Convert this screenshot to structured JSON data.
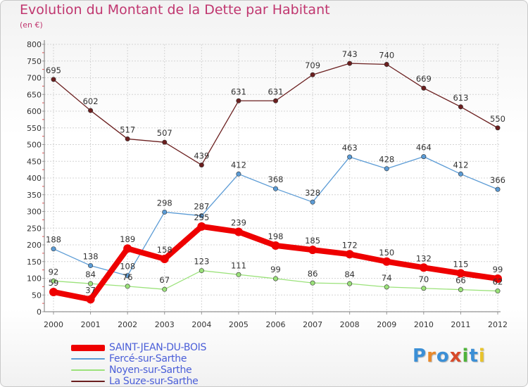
{
  "title": "Evolution du Montant de la Dette par Habitant",
  "subtitle": "(en €)",
  "logo": {
    "letters": [
      {
        "ch": "P",
        "color": "#3b8fd6"
      },
      {
        "ch": "r",
        "color": "#e8892b"
      },
      {
        "ch": "o",
        "color": "#3b8fd6"
      },
      {
        "ch": "x",
        "color": "#d84a2a"
      },
      {
        "ch": "i",
        "color": "#4fb33b"
      },
      {
        "ch": "t",
        "color": "#3b8fd6"
      },
      {
        "ch": "i",
        "color": "#e8c32b"
      }
    ]
  },
  "chart_data": {
    "type": "line",
    "x": [
      "2000",
      "2001",
      "2002",
      "2003",
      "2004",
      "2005",
      "2006",
      "2007",
      "2008",
      "2009",
      "2010",
      "2011",
      "2012"
    ],
    "yticks": [
      "0",
      "50",
      "100",
      "150",
      "200",
      "250",
      "300",
      "350",
      "400",
      "450",
      "500",
      "550",
      "600",
      "650",
      "700",
      "750",
      "800"
    ],
    "ylim": [
      0,
      800
    ],
    "grid": true,
    "legend_position": "bottom-left",
    "series": [
      {
        "name": "SAINT-JEAN-DU-BOIS",
        "color": "#ee0000",
        "width": 8,
        "values": [
          59,
          37,
          189,
          158,
          255,
          239,
          198,
          185,
          172,
          150,
          132,
          115,
          99
        ],
        "labels": [
          "59",
          "37",
          "189",
          "158",
          "255",
          "239",
          "198",
          "185",
          "172",
          "150",
          "132",
          "115",
          "99"
        ]
      },
      {
        "name": "Fercé-sur-Sarthe",
        "color": "#5b9bd5",
        "width": 1.3,
        "values": [
          188,
          138,
          108,
          298,
          287,
          412,
          368,
          328,
          463,
          428,
          464,
          412,
          366
        ],
        "labels": [
          "188",
          "138",
          "108",
          "298",
          "287",
          "412",
          "368",
          "328",
          "463",
          "428",
          "464",
          "412",
          "366"
        ]
      },
      {
        "name": "Noyen-sur-Sarthe",
        "color": "#9be27a",
        "width": 1.3,
        "values": [
          92,
          84,
          76,
          67,
          123,
          111,
          99,
          86,
          84,
          74,
          70,
          66,
          62
        ],
        "labels": [
          "92",
          "84",
          "76",
          "67",
          "123",
          "111",
          "99",
          "86",
          "84",
          "74",
          "70",
          "66",
          "62"
        ]
      },
      {
        "name": "La Suze-sur-Sarthe",
        "color": "#6b1f1f",
        "width": 1.3,
        "values": [
          695,
          602,
          517,
          507,
          439,
          631,
          631,
          709,
          743,
          740,
          669,
          613,
          550
        ],
        "labels": [
          "695",
          "602",
          "517",
          "507",
          "439",
          "631",
          "631",
          "709",
          "743",
          "740",
          "669",
          "613",
          "550"
        ]
      }
    ]
  }
}
